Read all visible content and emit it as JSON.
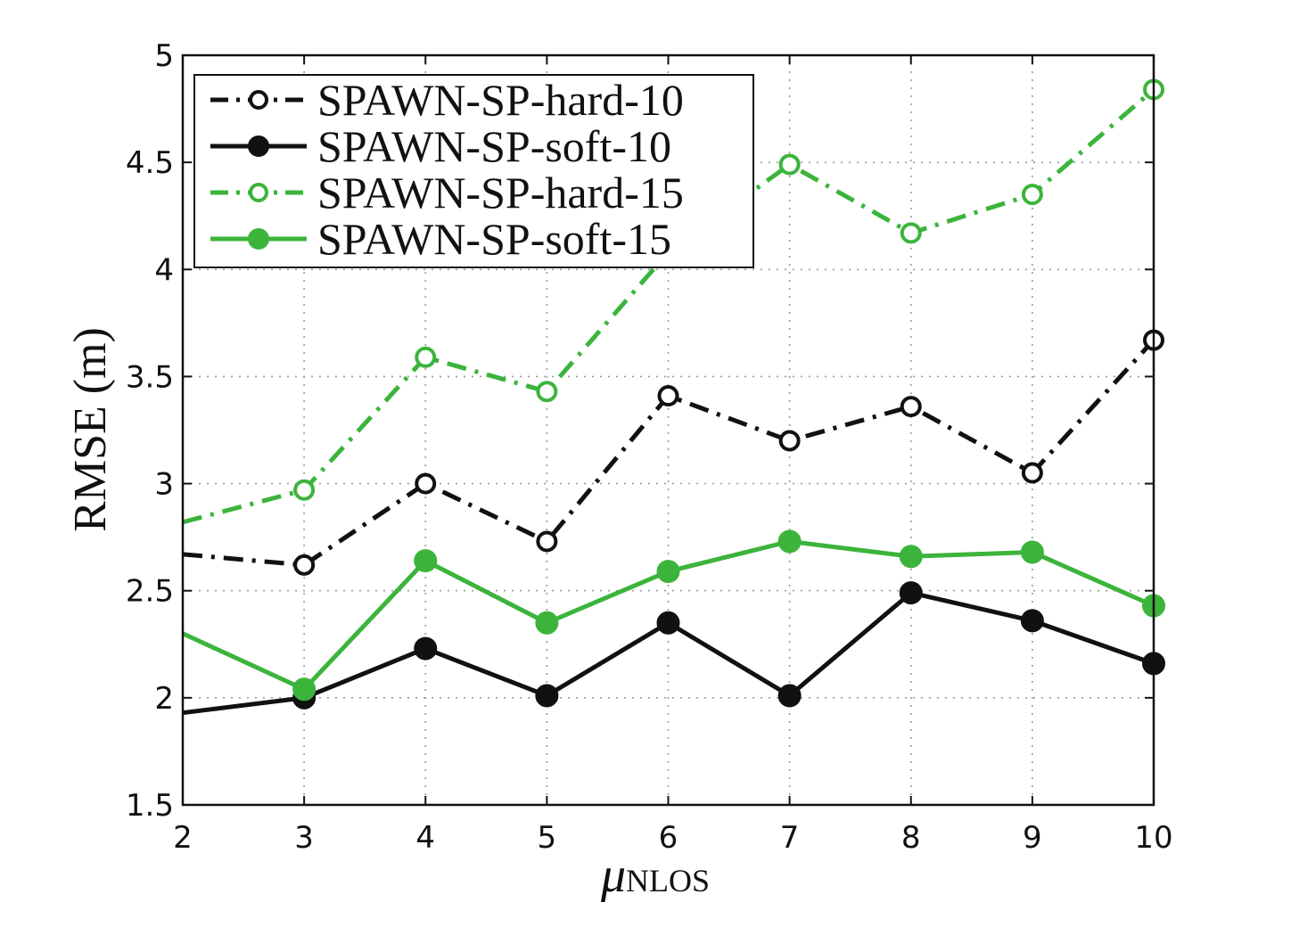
{
  "chart_data": {
    "type": "line",
    "title": "",
    "xlabel": "μ",
    "xlabel_sub": "NLOS",
    "ylabel": "RMSE (m)",
    "xlim": [
      2,
      10
    ],
    "ylim": [
      1.5,
      5
    ],
    "x_ticks": [
      "2",
      "3",
      "4",
      "5",
      "6",
      "7",
      "8",
      "9",
      "10"
    ],
    "y_ticks": [
      "1.5",
      "2",
      "2.5",
      "3",
      "3.5",
      "4",
      "4.5",
      "5"
    ],
    "grid": true,
    "legend_position": "top-left",
    "x": [
      2,
      3,
      4,
      5,
      6,
      7,
      8,
      9,
      10
    ],
    "series": [
      {
        "name": "SPAWN-SP-hard-10",
        "color": "#111111",
        "line_style": "dash-dot",
        "marker": "open-circle",
        "values": [
          2.67,
          2.62,
          3.0,
          2.73,
          3.41,
          3.2,
          3.36,
          3.05,
          3.67
        ]
      },
      {
        "name": "SPAWN-SP-soft-10",
        "color": "#111111",
        "line_style": "solid",
        "marker": "filled-circle",
        "values": [
          1.93,
          2.0,
          2.23,
          2.01,
          2.35,
          2.01,
          2.49,
          2.36,
          2.16
        ]
      },
      {
        "name": "SPAWN-SP-hard-15",
        "color": "#3cb43c",
        "line_style": "dash-dot",
        "marker": "open-circle",
        "values": [
          2.82,
          2.97,
          3.59,
          3.43,
          4.08,
          4.49,
          4.17,
          4.35,
          4.84
        ]
      },
      {
        "name": "SPAWN-SP-soft-15",
        "color": "#3cb43c",
        "line_style": "solid",
        "marker": "filled-circle",
        "values": [
          2.3,
          2.04,
          2.64,
          2.35,
          2.59,
          2.73,
          2.66,
          2.68,
          2.43
        ]
      }
    ]
  }
}
